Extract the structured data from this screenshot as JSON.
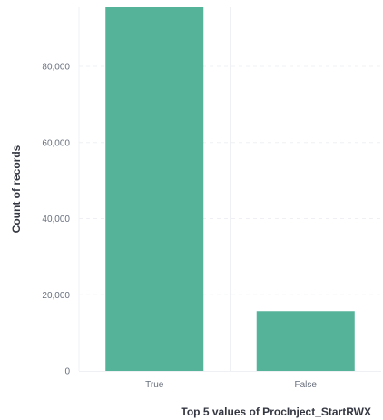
{
  "chart_data": {
    "type": "bar",
    "categories": [
      "True",
      "False"
    ],
    "values": [
      96000,
      15700
    ],
    "xlabel": "Top 5 values of ProcInject_StartRWX",
    "ylabel": "Count of records",
    "yticks": [
      "0",
      "20,000",
      "40,000",
      "60,000",
      "80,000"
    ],
    "ytick_values": [
      0,
      20000,
      40000,
      60000,
      80000
    ],
    "ylim": [
      0,
      95000
    ],
    "grid": true,
    "colors": {
      "bar": "#54b399",
      "grid": "#eef0f3",
      "axis_line": "#eef0f3",
      "tick_text": "#69707d",
      "title_text": "#343741"
    }
  }
}
